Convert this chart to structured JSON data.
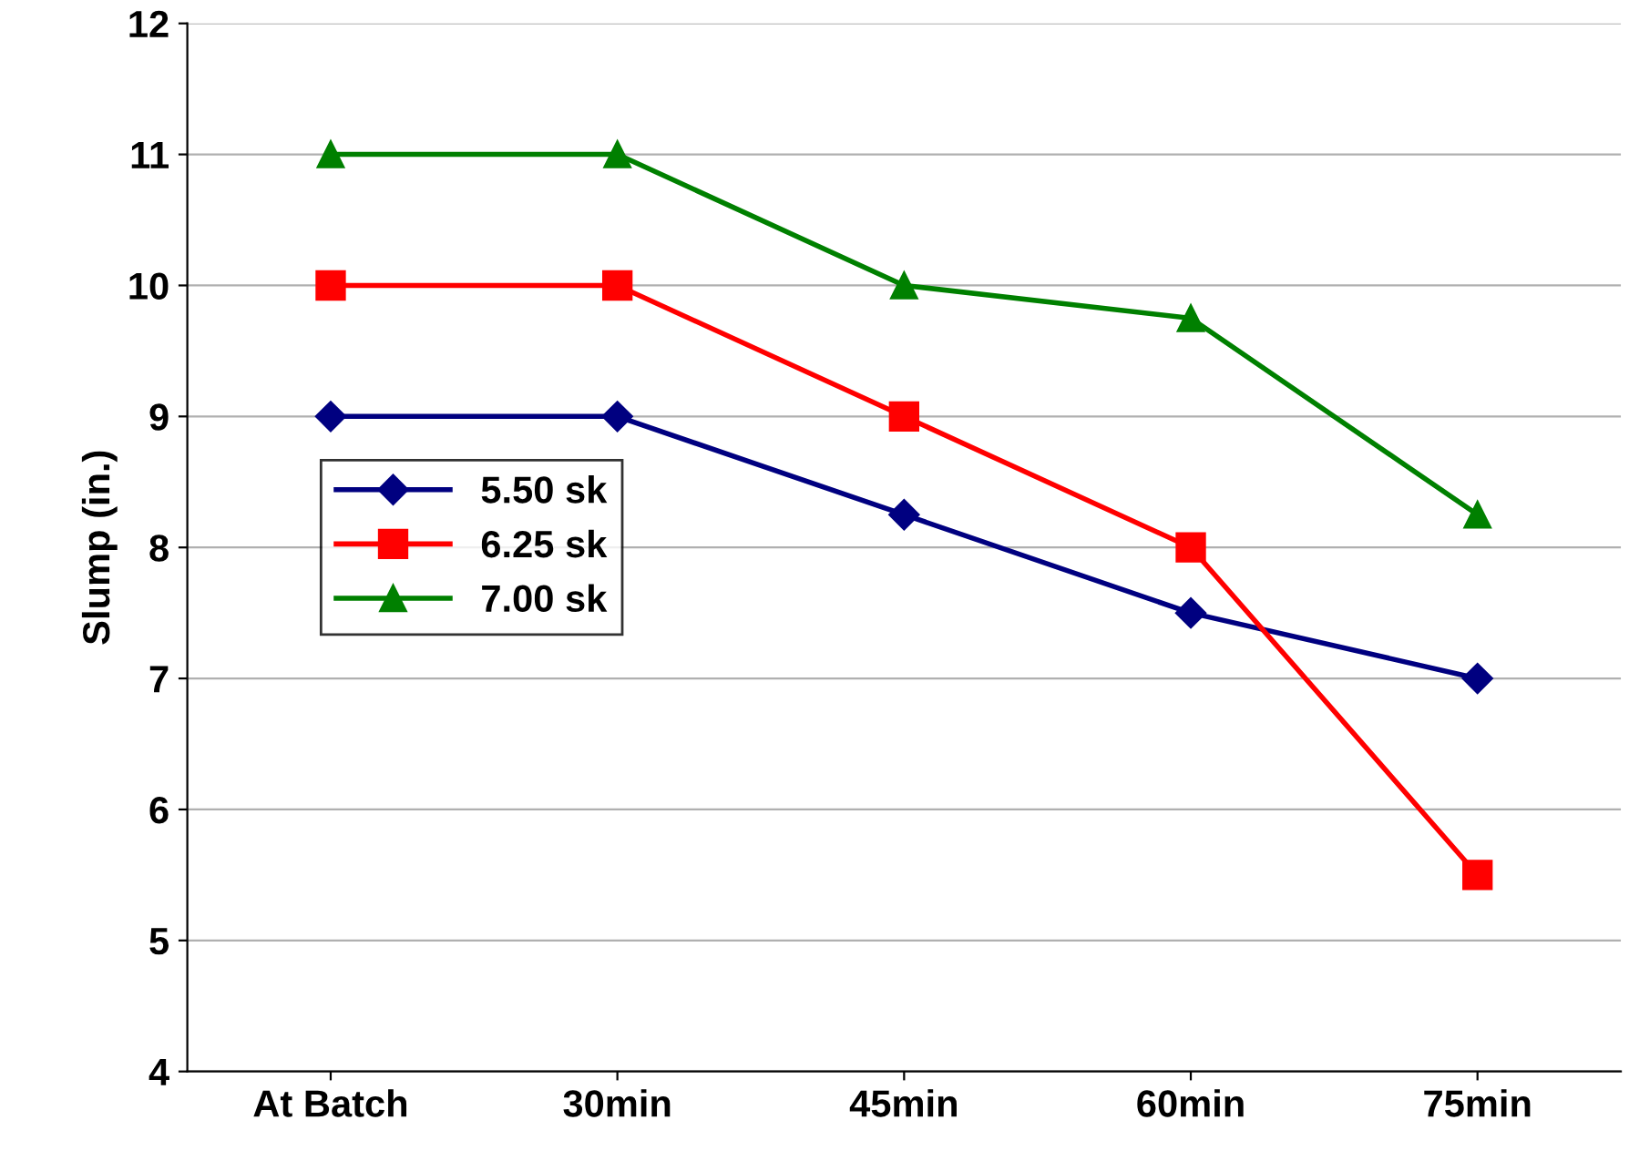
{
  "chart_data": {
    "type": "line",
    "ylabel": "Slump (in.)",
    "categories": [
      "At Batch",
      "30min",
      "45min",
      "60min",
      "75min"
    ],
    "series": [
      {
        "name": "5.50 sk",
        "color": "#000080",
        "marker": "diamond",
        "values": [
          9,
          9,
          8.25,
          7.5,
          7
        ]
      },
      {
        "name": "6.25 sk",
        "color": "#ff0000",
        "marker": "square",
        "values": [
          10,
          10,
          9,
          8,
          5.5
        ]
      },
      {
        "name": "7.00 sk",
        "color": "#008000",
        "marker": "triangle",
        "values": [
          11,
          11,
          10,
          9.75,
          8.25
        ]
      }
    ],
    "ylim": [
      4,
      12
    ],
    "yticks": [
      4,
      5,
      6,
      7,
      8,
      9,
      10,
      11,
      12
    ],
    "grid": "y",
    "legend": "center left",
    "line_style": "solid"
  }
}
